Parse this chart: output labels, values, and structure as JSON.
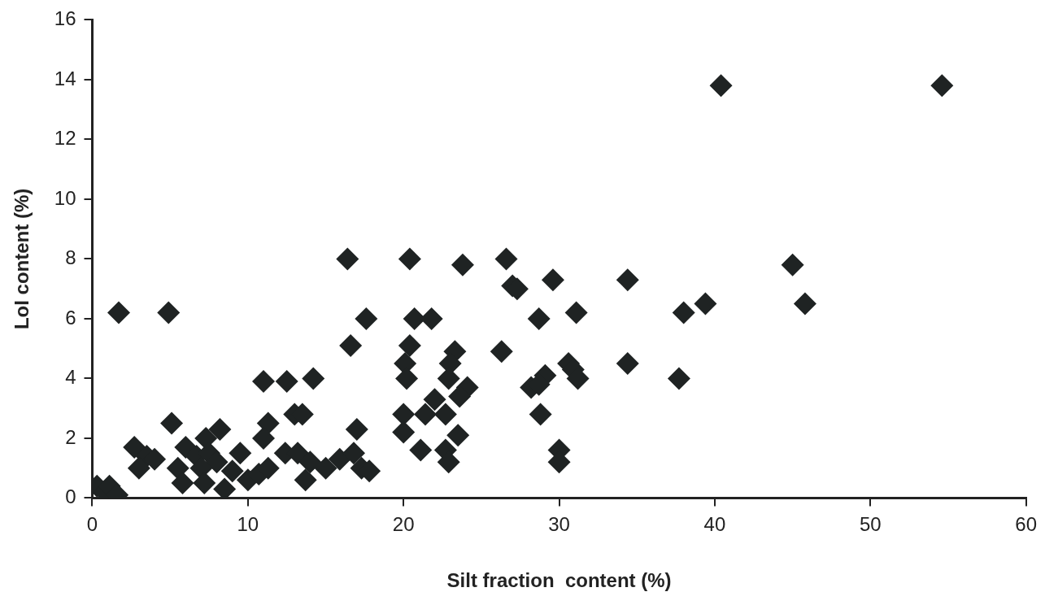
{
  "chart_data": {
    "type": "scatter",
    "xlabel": "Silt fraction  content (%)",
    "ylabel": "LoI content (%)",
    "marker": "diamond",
    "grid": false,
    "xlim": [
      0,
      60
    ],
    "xticks": [
      0,
      10,
      20,
      30,
      40,
      50,
      60
    ],
    "ylim": [
      0,
      16
    ],
    "yticks": [
      0,
      2,
      4,
      6,
      8,
      10,
      12,
      14,
      16
    ],
    "series": [
      {
        "color": "#1f2323",
        "x": [
          1.7,
          4.9,
          40.4,
          54.6,
          16.4,
          20.4,
          26.6,
          23.8,
          27,
          27.3,
          29.6,
          34.4,
          45,
          39.4,
          45.8,
          38,
          31.1,
          17.6,
          20.7,
          21.8,
          28.7,
          16.6,
          20.4,
          23.3,
          26.3,
          20.1,
          23,
          30.6,
          34.4,
          30.9,
          20.2,
          22.9,
          29.1,
          31.2,
          37.7,
          14.2,
          11,
          12.5,
          24.1,
          28.2,
          23.6,
          22,
          28.7,
          13,
          13.5,
          20,
          21.4,
          22.7,
          28.8,
          11.3,
          5.1,
          11,
          8.2,
          7.3,
          23.5,
          20,
          17,
          2.7,
          3.5,
          4,
          3,
          6,
          6.7,
          7.5,
          8,
          7,
          5.5,
          5.8,
          7.2,
          8.5,
          9,
          9.5,
          10,
          10.7,
          11.3,
          12.4,
          13.2,
          13.7,
          14,
          15,
          15.9,
          16.8,
          17.3,
          17.8,
          21.1,
          22.7,
          22.9,
          30,
          30,
          0.3,
          0.8,
          1.1,
          1.6
        ],
        "values": [
          6.2,
          6.2,
          13.8,
          13.8,
          8,
          8,
          8,
          7.8,
          7.1,
          7,
          7.3,
          7.3,
          7.8,
          6.5,
          6.5,
          6.2,
          6.2,
          6,
          6,
          6,
          6,
          5.1,
          5.1,
          4.9,
          4.9,
          4.5,
          4.5,
          4.5,
          4.5,
          4.3,
          4,
          4,
          4.1,
          4,
          4,
          4,
          3.9,
          3.9,
          3.7,
          3.7,
          3.4,
          3.3,
          3.8,
          2.8,
          2.8,
          2.8,
          2.8,
          2.8,
          2.8,
          2.5,
          2.5,
          2,
          2.3,
          2,
          2.1,
          2.2,
          2.3,
          1.7,
          1.4,
          1.3,
          1,
          1.7,
          1.4,
          1.5,
          1.2,
          1,
          1,
          0.5,
          0.5,
          0.3,
          0.9,
          1.5,
          0.6,
          0.8,
          1,
          1.5,
          1.5,
          0.6,
          1.2,
          1,
          1.3,
          1.5,
          1,
          0.9,
          1.6,
          1.6,
          1.2,
          1.6,
          1.2,
          0.4,
          0.2,
          0.4,
          0.1
        ]
      }
    ]
  }
}
